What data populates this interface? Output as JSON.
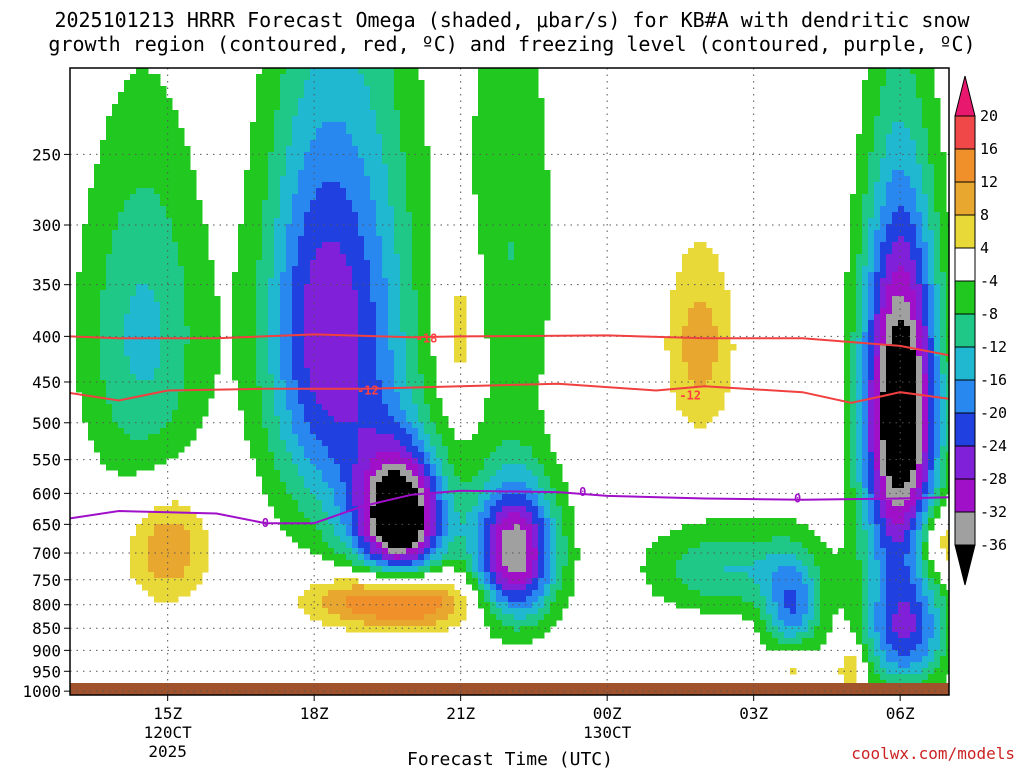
{
  "chart_data": {
    "type": "contour",
    "title": "2025101213 HRRR Forecast Omega (shaded, μbar/s) for KB#A with dendritic snow",
    "subtitle": "growth region (contoured, red, ºC) and freezing level (contoured, purple, ºC)",
    "xlabel": "Forecast Time (UTC)",
    "ylabel": "",
    "credit": "coolwx.com/models",
    "x_ticks": [
      {
        "label": "15Z",
        "sub1": "120CT",
        "sub2": "2025",
        "hour": 15
      },
      {
        "label": "18Z",
        "sub1": "",
        "sub2": "",
        "hour": 18
      },
      {
        "label": "21Z",
        "sub1": "",
        "sub2": "",
        "hour": 21
      },
      {
        "label": "00Z",
        "sub1": "130CT",
        "sub2": "",
        "hour": 24
      },
      {
        "label": "03Z",
        "sub1": "",
        "sub2": "",
        "hour": 27
      },
      {
        "label": "06Z",
        "sub1": "",
        "sub2": "",
        "hour": 30
      }
    ],
    "xlim": [
      13,
      31
    ],
    "y_ticks": [
      250,
      300,
      350,
      400,
      450,
      500,
      550,
      600,
      650,
      700,
      750,
      800,
      850,
      900,
      950,
      1000
    ],
    "ylim_hPa": [
      200,
      1010
    ],
    "colorbar": {
      "labels": [
        "20",
        "16",
        "12",
        "8",
        "4",
        "-4",
        "-8",
        "-12",
        "-16",
        "-20",
        "-24",
        "-28",
        "-32",
        "-36"
      ],
      "bins": [
        {
          "lo": 20,
          "hi": 24,
          "color": "#e8186e"
        },
        {
          "lo": 16,
          "hi": 20,
          "color": "#f04848"
        },
        {
          "lo": 12,
          "hi": 16,
          "color": "#f0902a"
        },
        {
          "lo": 8,
          "hi": 12,
          "color": "#e8a830"
        },
        {
          "lo": 4,
          "hi": 8,
          "color": "#e8d838"
        },
        {
          "lo": -4,
          "hi": 4,
          "color": "#ffffff"
        },
        {
          "lo": -8,
          "hi": -4,
          "color": "#20c820"
        },
        {
          "lo": -12,
          "hi": -8,
          "color": "#20c888"
        },
        {
          "lo": -16,
          "hi": -12,
          "color": "#20b8d0"
        },
        {
          "lo": -20,
          "hi": -16,
          "color": "#2888f0"
        },
        {
          "lo": -24,
          "hi": -20,
          "color": "#2040e0"
        },
        {
          "lo": -28,
          "hi": -24,
          "color": "#8020d8"
        },
        {
          "lo": -32,
          "hi": -28,
          "color": "#a010c8"
        },
        {
          "lo": -36,
          "hi": -32,
          "color": "#a0a0a0"
        },
        {
          "lo": -99,
          "hi": -36,
          "color": "#000000"
        }
      ]
    },
    "omega_features": [
      {
        "hour": 14.5,
        "p": 400,
        "sx": 0.9,
        "sp": 130,
        "amp": -13
      },
      {
        "hour": 18.0,
        "p": 390,
        "sx": 0.8,
        "sp": 150,
        "amp": -22
      },
      {
        "hour": 19.8,
        "p": 640,
        "sx": 0.6,
        "sp": 75,
        "amp": -40
      },
      {
        "hour": 19.2,
        "p": 450,
        "sx": 0.8,
        "sp": 220,
        "amp": -14
      },
      {
        "hour": 22.1,
        "p": 700,
        "sx": 0.6,
        "sp": 90,
        "amp": -36
      },
      {
        "hour": 22.0,
        "p": 320,
        "sx": 0.7,
        "sp": 140,
        "amp": -8
      },
      {
        "hour": 26.5,
        "p": 730,
        "sx": 1.2,
        "sp": 60,
        "amp": -12
      },
      {
        "hour": 27.8,
        "p": 820,
        "sx": 0.4,
        "sp": 80,
        "amp": -18
      },
      {
        "hour": 30.0,
        "p": 490,
        "sx": 0.55,
        "sp": 160,
        "amp": -45
      },
      {
        "hour": 30.1,
        "p": 860,
        "sx": 0.6,
        "sp": 90,
        "amp": -22
      },
      {
        "hour": 15.0,
        "p": 690,
        "sx": 0.6,
        "sp": 70,
        "amp": 12
      },
      {
        "hour": 19.6,
        "p": 790,
        "sx": 1.1,
        "sp": 45,
        "amp": 24
      },
      {
        "hour": 21.0,
        "p": 390,
        "sx": 0.3,
        "sp": 60,
        "amp": 9
      },
      {
        "hour": 25.9,
        "p": 410,
        "sx": 0.5,
        "sp": 70,
        "amp": 10
      },
      {
        "hour": 27.8,
        "p": 930,
        "sx": 0.3,
        "sp": 45,
        "amp": 10
      },
      {
        "hour": 29.0,
        "p": 940,
        "sx": 0.2,
        "sp": 40,
        "amp": 10
      },
      {
        "hour": 30.8,
        "p": 680,
        "sx": 0.4,
        "sp": 50,
        "amp": 12
      }
    ],
    "dgz_minus18": [
      [
        13,
        400
      ],
      [
        14,
        402
      ],
      [
        16,
        402
      ],
      [
        18,
        398
      ],
      [
        20,
        401
      ],
      [
        21,
        400
      ],
      [
        24,
        399
      ],
      [
        26,
        402
      ],
      [
        28,
        402
      ],
      [
        30,
        410
      ],
      [
        31,
        420
      ]
    ],
    "dgz_minus12": [
      [
        13,
        463
      ],
      [
        14,
        472
      ],
      [
        15,
        460
      ],
      [
        17,
        458
      ],
      [
        19,
        458
      ],
      [
        21,
        455
      ],
      [
        23,
        452
      ],
      [
        25,
        460
      ],
      [
        26,
        455
      ],
      [
        28,
        462
      ],
      [
        29,
        475
      ],
      [
        30,
        462
      ],
      [
        31,
        470
      ]
    ],
    "freezing_level": [
      [
        13,
        640
      ],
      [
        14,
        628
      ],
      [
        15,
        630
      ],
      [
        16,
        632
      ],
      [
        17,
        648
      ],
      [
        18,
        648
      ],
      [
        19,
        620
      ],
      [
        20,
        602
      ],
      [
        21,
        596
      ],
      [
        23,
        598
      ],
      [
        24,
        604
      ],
      [
        26,
        608
      ],
      [
        28,
        610
      ],
      [
        30,
        608
      ],
      [
        31,
        606
      ]
    ],
    "contour_labels": [
      {
        "text": "-18",
        "hour": 20.3,
        "p": 402,
        "color": "#ff4040"
      },
      {
        "text": "-12",
        "hour": 19.1,
        "p": 460,
        "color": "#ff4040"
      },
      {
        "text": "-12",
        "hour": 25.7,
        "p": 466,
        "color": "#ff4040"
      },
      {
        "text": "0",
        "hour": 17.0,
        "p": 648,
        "color": "#a010c8"
      },
      {
        "text": "0",
        "hour": 23.5,
        "p": 598,
        "color": "#a010c8"
      },
      {
        "text": "0",
        "hour": 27.9,
        "p": 608,
        "color": "#a010c8"
      }
    ]
  }
}
